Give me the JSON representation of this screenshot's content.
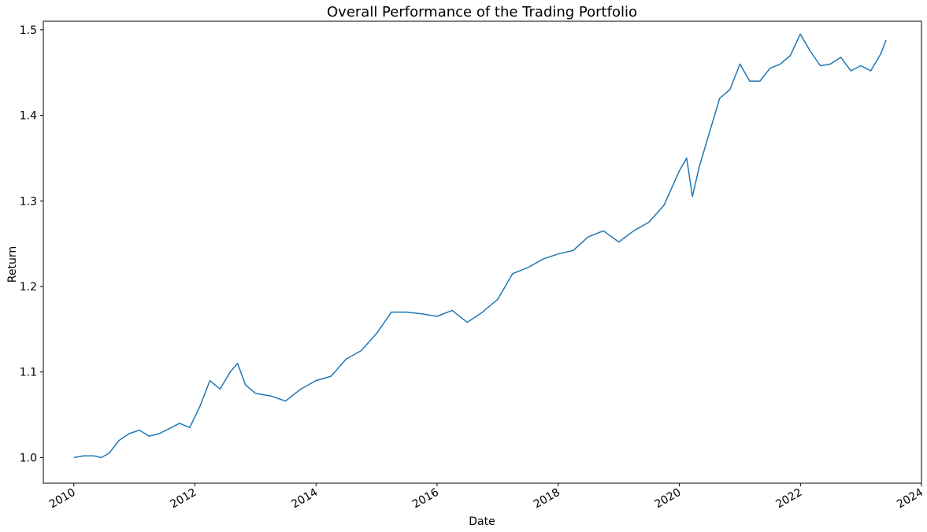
{
  "chart_data": {
    "type": "line",
    "title": "Overall Performance of the Trading Portfolio",
    "xlabel": "Date",
    "ylabel": "Return",
    "xlim": [
      "2009-07-01",
      "2024-01-01"
    ],
    "ylim": [
      0.97,
      1.51
    ],
    "x_ticks": [
      "2010",
      "2012",
      "2014",
      "2016",
      "2018",
      "2020",
      "2022",
      "2024"
    ],
    "y_ticks": [
      "1.0",
      "1.1",
      "1.2",
      "1.3",
      "1.4",
      "1.5"
    ],
    "grid": false,
    "legend": "none",
    "line_color": "#1f77b4",
    "series": [
      {
        "x": [
          "2010-01-01",
          "2010-03-01",
          "2010-05-01",
          "2010-06-15",
          "2010-08-01",
          "2010-10-01",
          "2010-12-01",
          "2011-02-01",
          "2011-04-01",
          "2011-06-01",
          "2011-08-01",
          "2011-10-01",
          "2011-12-01",
          "2012-02-01",
          "2012-04-01",
          "2012-06-01",
          "2012-08-01",
          "2012-09-15",
          "2012-11-01",
          "2013-01-01",
          "2013-04-01",
          "2013-07-01",
          "2013-10-01",
          "2014-01-01",
          "2014-04-01",
          "2014-07-01",
          "2014-10-01",
          "2015-01-01",
          "2015-04-01",
          "2015-07-01",
          "2015-10-01",
          "2016-01-01",
          "2016-04-01",
          "2016-07-01",
          "2016-10-01",
          "2017-01-01",
          "2017-04-01",
          "2017-07-01",
          "2017-10-01",
          "2018-01-01",
          "2018-04-01",
          "2018-07-01",
          "2018-10-01",
          "2019-01-01",
          "2019-04-01",
          "2019-07-01",
          "2019-10-01",
          "2020-01-01",
          "2020-02-15",
          "2020-03-20",
          "2020-05-01",
          "2020-07-01",
          "2020-09-01",
          "2020-11-01",
          "2021-01-01",
          "2021-03-01",
          "2021-05-01",
          "2021-07-01",
          "2021-09-01",
          "2021-11-01",
          "2021-12-31",
          "2022-03-01",
          "2022-05-01",
          "2022-07-01",
          "2022-09-01",
          "2022-11-01",
          "2023-01-01",
          "2023-03-01",
          "2023-05-01",
          "2023-06-01"
        ],
        "y": [
          1.0,
          1.002,
          1.002,
          1.0,
          1.005,
          1.02,
          1.028,
          1.032,
          1.025,
          1.028,
          1.034,
          1.04,
          1.035,
          1.06,
          1.09,
          1.08,
          1.1,
          1.11,
          1.085,
          1.075,
          1.072,
          1.066,
          1.08,
          1.09,
          1.095,
          1.115,
          1.125,
          1.145,
          1.17,
          1.17,
          1.168,
          1.165,
          1.172,
          1.158,
          1.17,
          1.185,
          1.215,
          1.222,
          1.232,
          1.238,
          1.242,
          1.258,
          1.265,
          1.252,
          1.265,
          1.275,
          1.295,
          1.335,
          1.35,
          1.305,
          1.34,
          1.38,
          1.42,
          1.43,
          1.46,
          1.44,
          1.44,
          1.455,
          1.46,
          1.47,
          1.495,
          1.475,
          1.458,
          1.46,
          1.468,
          1.452,
          1.458,
          1.452,
          1.472,
          1.488
        ]
      }
    ]
  }
}
